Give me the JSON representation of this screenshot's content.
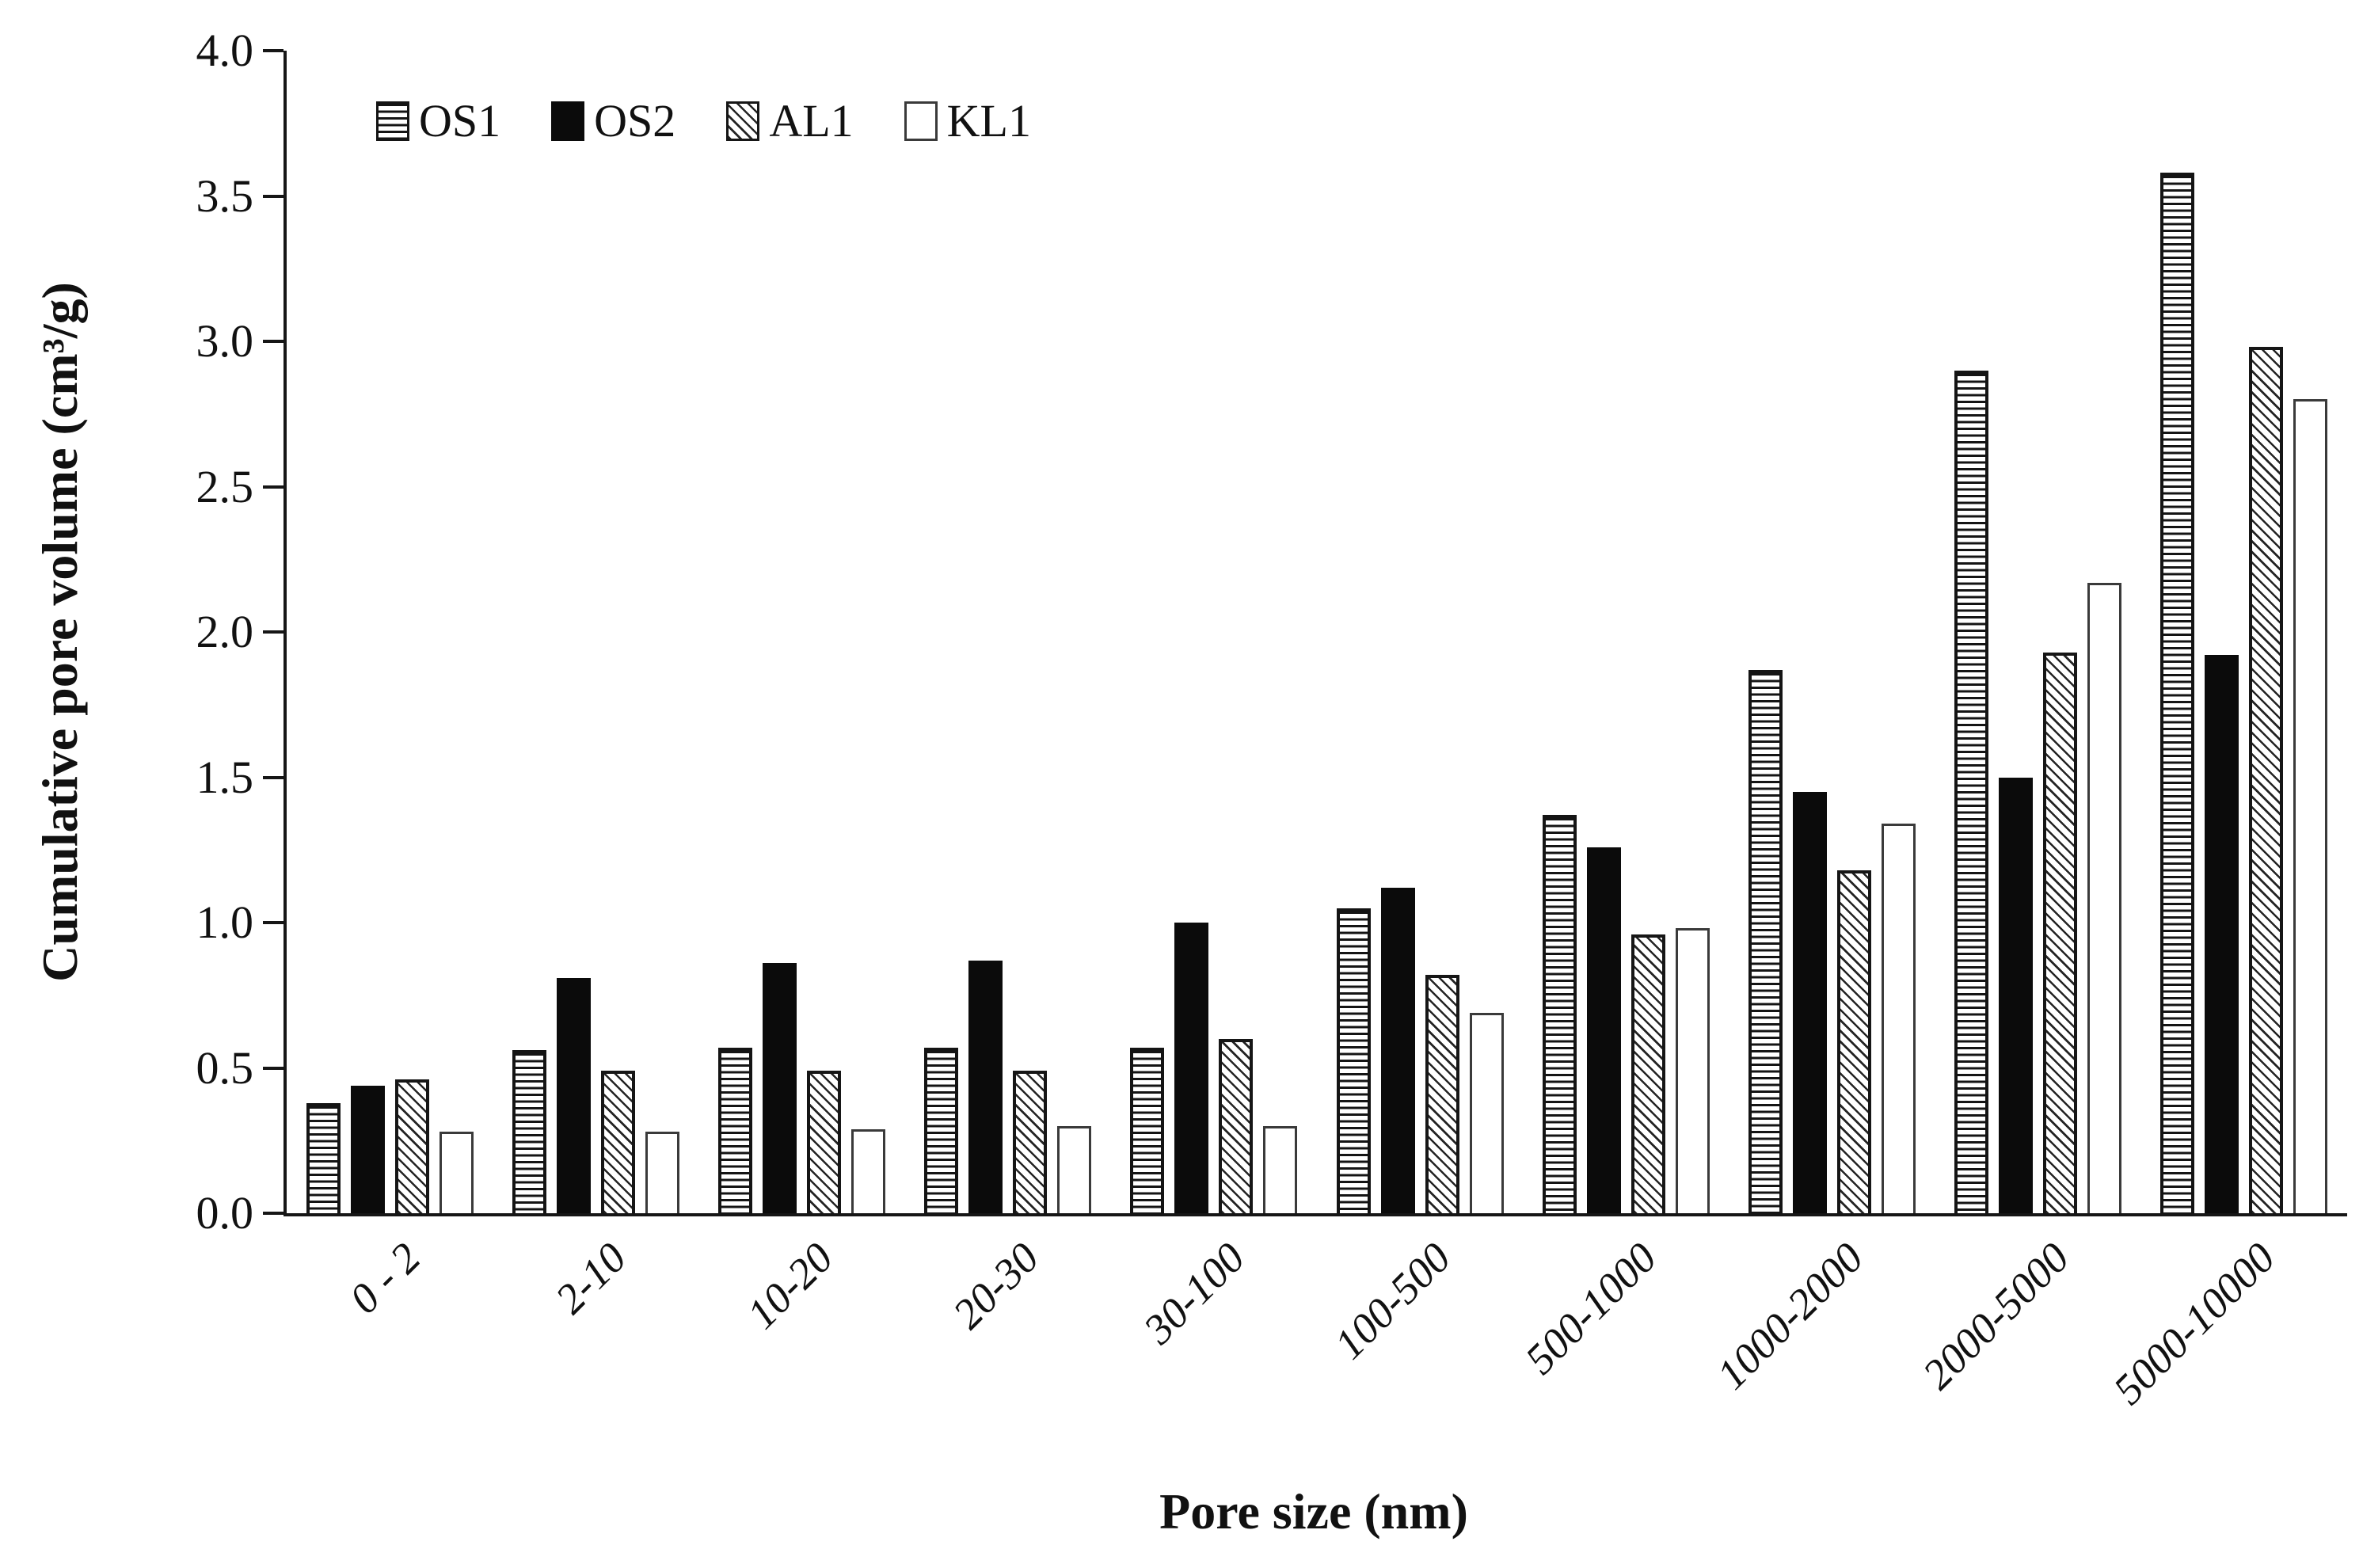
{
  "chart_data": {
    "type": "bar",
    "title": "",
    "xlabel": "Pore size (nm)",
    "ylabel": "Cumulative pore volume (cm³/g)",
    "categories": [
      "0 - 2",
      "2-10",
      "10-20",
      "20-30",
      "30-100",
      "100-500",
      "500-1000",
      "1000-2000",
      "2000-5000",
      "5000-10000"
    ],
    "series": [
      {
        "name": "OS1",
        "pattern": "horizontal-stripes",
        "values": [
          0.38,
          0.56,
          0.57,
          0.57,
          0.57,
          1.05,
          1.37,
          1.87,
          2.9,
          3.58
        ]
      },
      {
        "name": "OS2",
        "pattern": "solid-black",
        "values": [
          0.44,
          0.81,
          0.86,
          0.87,
          1.0,
          1.12,
          1.26,
          1.45,
          1.5,
          1.92
        ]
      },
      {
        "name": "AL1",
        "pattern": "diagonal-stripes",
        "values": [
          0.46,
          0.49,
          0.49,
          0.49,
          0.6,
          0.82,
          0.96,
          1.18,
          1.93,
          2.98
        ]
      },
      {
        "name": "KL1",
        "pattern": "white",
        "values": [
          0.28,
          0.28,
          0.29,
          0.3,
          0.3,
          0.69,
          0.98,
          1.34,
          2.17,
          2.8
        ]
      }
    ],
    "ylim": [
      0.0,
      4.0
    ],
    "ytick_step": 0.5,
    "ytick_labels": [
      "0.0",
      "0.5",
      "1.0",
      "1.5",
      "2.0",
      "2.5",
      "3.0",
      "3.5",
      "4.0"
    ],
    "grid": false,
    "legend_position": "top-left-inside",
    "colors": {
      "ink": "#111111",
      "background": "#ffffff"
    }
  }
}
